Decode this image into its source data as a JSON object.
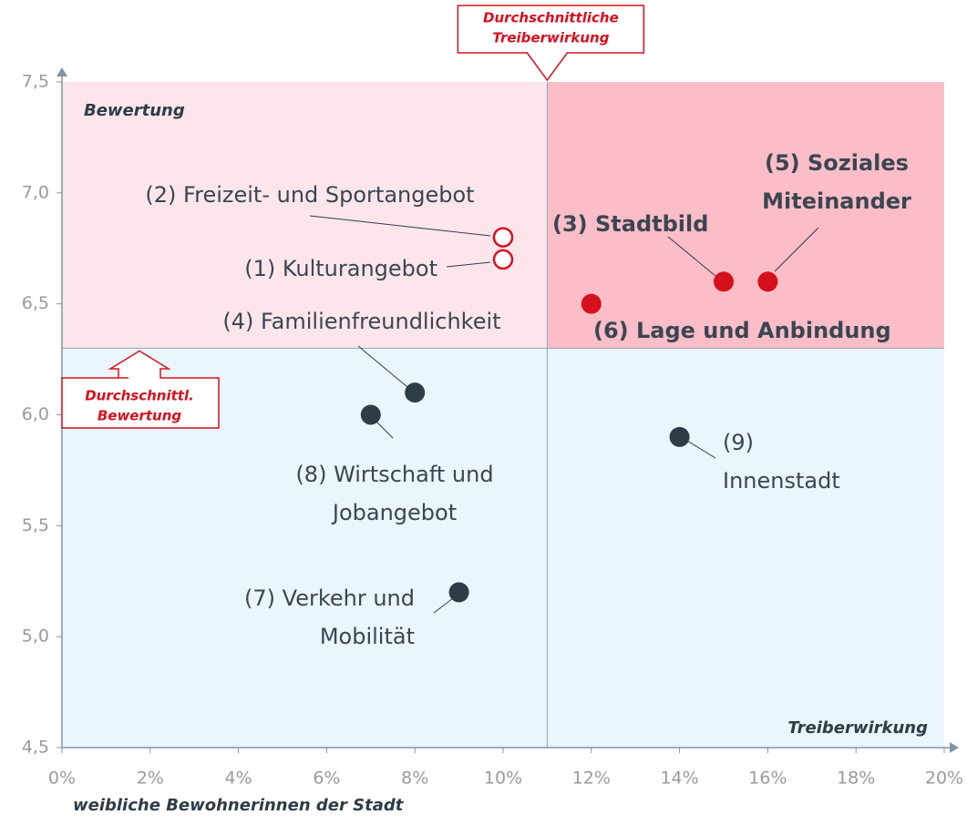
{
  "chart_data": {
    "type": "scatter",
    "x_label": "weibliche Bewohnerinnen der Stadt",
    "x_axis_title": "Treiberwirkung",
    "y_axis_title": "Bewertung",
    "xlim": [
      0,
      20
    ],
    "ylim": [
      4.5,
      7.5
    ],
    "xticks": [
      {
        "value": 0,
        "label": "0%"
      },
      {
        "value": 2,
        "label": "2%"
      },
      {
        "value": 4,
        "label": "4%"
      },
      {
        "value": 6,
        "label": "6%"
      },
      {
        "value": 8,
        "label": "8%"
      },
      {
        "value": 10,
        "label": "10%"
      },
      {
        "value": 12,
        "label": "12%"
      },
      {
        "value": 14,
        "label": "14%"
      },
      {
        "value": 16,
        "label": "16%"
      },
      {
        "value": 18,
        "label": "18%"
      },
      {
        "value": 20,
        "label": "20%"
      }
    ],
    "yticks": [
      {
        "value": 4.5,
        "label": "4,5"
      },
      {
        "value": 5.0,
        "label": "5,0"
      },
      {
        "value": 5.5,
        "label": "5,5"
      },
      {
        "value": 6.0,
        "label": "6,0"
      },
      {
        "value": 6.5,
        "label": "6,5"
      },
      {
        "value": 7.0,
        "label": "7,0"
      },
      {
        "value": 7.5,
        "label": "7,5"
      }
    ],
    "average_x": {
      "value": 11,
      "label": [
        "Durchschnittliche",
        "Treiberwirkung"
      ]
    },
    "average_y": {
      "value": 6.3,
      "label": [
        "Durchschnittl.",
        "Bewertung"
      ]
    },
    "quadrant_colors": {
      "top_left": "#fde6eb",
      "top_right": "#fbbdc7",
      "bottom": "#eaf5fc"
    },
    "points": [
      {
        "label": [
          "(1) Kulturangebot"
        ],
        "x": 10,
        "y": 6.7,
        "color": "#d7101e",
        "filled": false,
        "bold": false
      },
      {
        "label": [
          "(2) Freizeit- und Sportangebot"
        ],
        "x": 10,
        "y": 6.8,
        "color": "#d7101e",
        "filled": false,
        "bold": false
      },
      {
        "label": [
          "(3) Stadtbild"
        ],
        "x": 15,
        "y": 6.6,
        "color": "#d7101e",
        "filled": true,
        "bold": true
      },
      {
        "label": [
          "(4) Familienfreundlichkeit"
        ],
        "x": 8,
        "y": 6.1,
        "color": "#2e3c48",
        "filled": true,
        "bold": false
      },
      {
        "label": [
          "(5) Soziales",
          "Miteinander"
        ],
        "x": 16,
        "y": 6.6,
        "color": "#d7101e",
        "filled": true,
        "bold": true
      },
      {
        "label": [
          "(6) Lage und Anbindung"
        ],
        "x": 12,
        "y": 6.5,
        "color": "#d7101e",
        "filled": true,
        "bold": true
      },
      {
        "label": [
          "(7) Verkehr und",
          "Mobilität"
        ],
        "x": 9,
        "y": 5.2,
        "color": "#2e3c48",
        "filled": true,
        "bold": false
      },
      {
        "label": [
          "(8) Wirtschaft und",
          "Jobangebot"
        ],
        "x": 7,
        "y": 6.0,
        "color": "#2e3c48",
        "filled": true,
        "bold": false
      },
      {
        "label": [
          "(9)",
          "Innenstadt"
        ],
        "x": 14,
        "y": 5.9,
        "color": "#2e3c48",
        "filled": true,
        "bold": false
      }
    ]
  }
}
